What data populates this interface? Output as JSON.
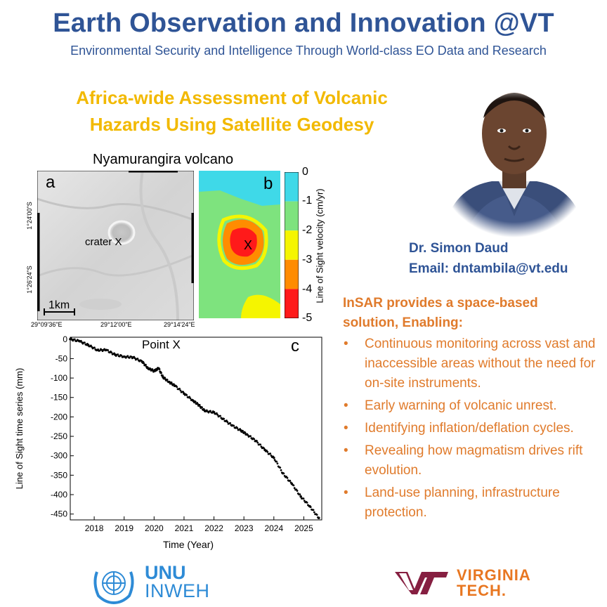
{
  "header": {
    "title": "Earth Observation and Innovation @VT",
    "subtitle": "Environmental Security and Intelligence Through World-class EO Data and Research"
  },
  "poster": {
    "title_line1": "Africa-wide Assessment of Volcanic",
    "title_line2": "Hazards Using Satellite Geodesy"
  },
  "figure": {
    "title": "Nyamurangira volcano",
    "panel_a": {
      "label": "a",
      "crater_label": "crater X",
      "scale_label": "1km",
      "lat_labels": [
        "1°24'00\"S",
        "1°26'24\"S"
      ],
      "lon_labels": [
        "29°09'36\"E",
        "29°12'00\"E",
        "29°14'24\"E"
      ]
    },
    "panel_b": {
      "label": "b",
      "marker": "X",
      "colorbar_ticks": [
        "0",
        "-1",
        "-2",
        "-3",
        "-4",
        "-5"
      ],
      "colorbar_label": "Line of Sight velocity (cm/yr)",
      "colors": [
        "#3fd9e8",
        "#7ee37e",
        "#f5f500",
        "#ff8c00",
        "#ff1a1a"
      ]
    },
    "panel_c": {
      "label": "c",
      "point_label": "Point X"
    }
  },
  "chart_data": {
    "type": "scatter",
    "title": "Point X",
    "xlabel": "Time (Year)",
    "ylabel": "Line of Sight time series (mm)",
    "xlim": [
      2017.2,
      2025.6
    ],
    "ylim": [
      -465,
      5
    ],
    "xticks": [
      2018,
      2019,
      2020,
      2021,
      2022,
      2023,
      2024,
      2025
    ],
    "yticks": [
      0,
      -50,
      -100,
      -150,
      -200,
      -250,
      -300,
      -350,
      -400,
      -450
    ],
    "x": [
      2017.2,
      2017.5,
      2017.8,
      2018.1,
      2018.4,
      2018.7,
      2019.0,
      2019.3,
      2019.6,
      2019.8,
      2020.0,
      2020.15,
      2020.3,
      2020.5,
      2020.7,
      2021.0,
      2021.3,
      2021.5,
      2021.7,
      2022.0,
      2022.3,
      2022.6,
      2022.9,
      2023.1,
      2023.4,
      2023.7,
      2024.0,
      2024.3,
      2024.6,
      2024.9,
      2025.2,
      2025.5
    ],
    "y": [
      0,
      -5,
      -15,
      -28,
      -28,
      -40,
      -45,
      -47,
      -58,
      -75,
      -82,
      -75,
      -98,
      -110,
      -120,
      -140,
      -158,
      -170,
      -185,
      -188,
      -205,
      -222,
      -235,
      -245,
      -262,
      -285,
      -305,
      -345,
      -372,
      -405,
      -430,
      -460
    ]
  },
  "person": {
    "name": "Dr. Simon Daud",
    "email": "Email: dntambila@vt.edu"
  },
  "insar": {
    "heading": "InSAR provides a space-based solution, Enabling:",
    "bullets": [
      "Continuous monitoring across vast and inaccessible areas without the need for on-site instruments.",
      "Early warning of volcanic unrest.",
      "Identifying inflation/deflation cycles.",
      "Revealing how magmatism drives rift evolution.",
      "Land-use planning, infrastructure protection."
    ]
  },
  "logos": {
    "unu_line1": "UNU",
    "unu_line2": "INWEH",
    "vt_line1": "VIRGINIA",
    "vt_line2": "TECH."
  }
}
